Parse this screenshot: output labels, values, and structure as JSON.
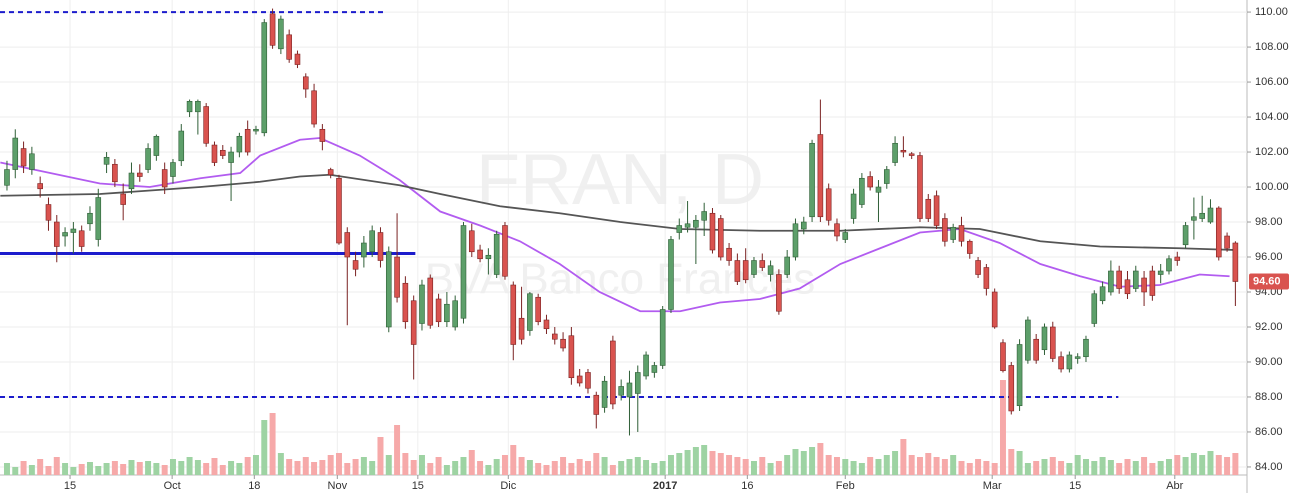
{
  "chart_data": {
    "type": "candlestick",
    "watermark": "FRAN, D",
    "watermark_subtitle": "BVA Banco Frances",
    "ylim": [
      83.54,
      110.69
    ],
    "yticks": [
      {
        "value": 84,
        "label": "84.00"
      },
      {
        "value": 86,
        "label": "86.00"
      },
      {
        "value": 88,
        "label": "88.00"
      },
      {
        "value": 90,
        "label": "90.00"
      },
      {
        "value": 92,
        "label": "92.00"
      },
      {
        "value": 94,
        "label": "94.00"
      },
      {
        "value": 96,
        "label": "96.00"
      },
      {
        "value": 98,
        "label": "98.00"
      },
      {
        "value": 100,
        "label": "100.00"
      },
      {
        "value": 102,
        "label": "102.00"
      },
      {
        "value": 104,
        "label": "104.00"
      },
      {
        "value": 106,
        "label": "106.00"
      },
      {
        "value": 108,
        "label": "108.00"
      },
      {
        "value": 110,
        "label": "110.00"
      }
    ],
    "xlim": [
      -0.84,
      149.4
    ],
    "xticks": [
      {
        "value": 7.6,
        "label": "15"
      },
      {
        "value": 19.9,
        "label": "Oct"
      },
      {
        "value": 29.8,
        "label": "18"
      },
      {
        "value": 39.8,
        "label": "Nov"
      },
      {
        "value": 49.5,
        "label": "15"
      },
      {
        "value": 60.4,
        "label": "Dic"
      },
      {
        "value": 79.3,
        "label": "2017"
      },
      {
        "value": 89.2,
        "label": "16"
      },
      {
        "value": 101,
        "label": "Feb"
      },
      {
        "value": 118.7,
        "label": "Mar"
      },
      {
        "value": 128.7,
        "label": "15"
      },
      {
        "value": 140.7,
        "label": "Abr"
      }
    ],
    "grid": true,
    "up_color": "#5d9f6a",
    "down_color": "#d9534f",
    "candles": [
      [
        100.1,
        101.5,
        99.8,
        101.0
      ],
      [
        101.0,
        103.3,
        100.5,
        102.8
      ],
      [
        102.2,
        102.6,
        100.8,
        101.2
      ],
      [
        101.0,
        102.3,
        100.7,
        101.9
      ],
      [
        100.2,
        100.6,
        99.4,
        99.9
      ],
      [
        99.0,
        99.4,
        97.5,
        98.1
      ],
      [
        98.0,
        98.4,
        95.7,
        96.6
      ],
      [
        97.2,
        97.7,
        96.6,
        97.4
      ],
      [
        97.4,
        98.0,
        96.2,
        97.6
      ],
      [
        97.5,
        97.8,
        96.3,
        96.6
      ],
      [
        97.9,
        98.9,
        97.5,
        98.5
      ],
      [
        97.0,
        99.9,
        96.6,
        99.4
      ],
      [
        101.3,
        102.0,
        100.8,
        101.7
      ],
      [
        101.3,
        101.6,
        100.0,
        100.3
      ],
      [
        99.6,
        100.2,
        98.1,
        99.0
      ],
      [
        99.9,
        101.4,
        99.6,
        100.8
      ],
      [
        100.8,
        101.3,
        100.3,
        100.6
      ],
      [
        101.0,
        102.5,
        100.8,
        102.2
      ],
      [
        101.8,
        103.0,
        101.5,
        102.9
      ],
      [
        101.0,
        101.4,
        99.6,
        100.0
      ],
      [
        100.6,
        101.6,
        100.2,
        101.4
      ],
      [
        101.5,
        103.6,
        101.2,
        103.2
      ],
      [
        104.3,
        105.0,
        104.0,
        104.9
      ],
      [
        104.3,
        105.0,
        103.0,
        104.9
      ],
      [
        104.6,
        104.8,
        102.3,
        102.5
      ],
      [
        102.4,
        102.6,
        101.2,
        101.4
      ],
      [
        102.1,
        102.4,
        101.6,
        101.8
      ],
      [
        101.4,
        102.3,
        99.2,
        102.0
      ],
      [
        102.0,
        103.1,
        101.7,
        102.9
      ],
      [
        103.3,
        103.8,
        101.8,
        102.0
      ],
      [
        103.2,
        103.5,
        103.0,
        103.3
      ],
      [
        103.1,
        109.6,
        102.9,
        109.4
      ],
      [
        109.9,
        110.2,
        107.9,
        108.1
      ],
      [
        107.9,
        109.8,
        107.6,
        109.6
      ],
      [
        108.7,
        109.0,
        107.1,
        107.3
      ],
      [
        107.6,
        107.8,
        106.8,
        107.0
      ],
      [
        106.3,
        106.5,
        105.1,
        105.6
      ],
      [
        105.5,
        105.9,
        103.4,
        103.6
      ],
      [
        103.3,
        103.6,
        102.1,
        102.6
      ],
      [
        101.0,
        101.1,
        100.5,
        100.7
      ],
      [
        100.5,
        100.7,
        96.7,
        96.8
      ],
      [
        97.4,
        97.7,
        92.1,
        96.0
      ],
      [
        95.8,
        96.3,
        94.9,
        95.3
      ],
      [
        96.0,
        97.2,
        95.4,
        96.8
      ],
      [
        96.3,
        97.8,
        96.0,
        97.5
      ],
      [
        97.4,
        97.7,
        95.4,
        95.8
      ],
      [
        92.0,
        96.6,
        91.7,
        96.3
      ],
      [
        96.0,
        98.5,
        93.4,
        93.7
      ],
      [
        94.5,
        94.9,
        91.9,
        92.3
      ],
      [
        93.5,
        93.8,
        89.0,
        91.0
      ],
      [
        92.2,
        94.7,
        91.8,
        94.4
      ],
      [
        94.8,
        95.0,
        91.9,
        92.1
      ],
      [
        93.6,
        93.9,
        92.0,
        92.3
      ],
      [
        92.3,
        94.0,
        92.0,
        93.3
      ],
      [
        92.0,
        93.8,
        91.8,
        93.5
      ],
      [
        92.5,
        98.0,
        92.2,
        97.8
      ],
      [
        97.5,
        97.9,
        96.0,
        96.3
      ],
      [
        96.4,
        96.7,
        95.7,
        95.9
      ],
      [
        95.9,
        96.5,
        95.0,
        96.1
      ],
      [
        95.0,
        97.5,
        94.8,
        97.3
      ],
      [
        97.8,
        98.0,
        94.7,
        94.9
      ],
      [
        94.4,
        94.6,
        90.1,
        91.0
      ],
      [
        92.5,
        94.3,
        91.0,
        91.3
      ],
      [
        91.8,
        94.0,
        91.5,
        93.9
      ],
      [
        93.7,
        93.9,
        92.1,
        92.3
      ],
      [
        92.4,
        92.7,
        91.6,
        91.9
      ],
      [
        91.6,
        92.0,
        91.0,
        91.3
      ],
      [
        91.3,
        91.7,
        90.6,
        90.8
      ],
      [
        91.5,
        92.0,
        88.7,
        89.1
      ],
      [
        89.2,
        89.6,
        88.6,
        88.8
      ],
      [
        89.4,
        89.6,
        88.2,
        88.5
      ],
      [
        88.1,
        88.3,
        86.2,
        87.0
      ],
      [
        87.4,
        89.2,
        87.1,
        88.9
      ],
      [
        91.2,
        91.5,
        87.3,
        87.6
      ],
      [
        88.1,
        89.0,
        87.8,
        88.6
      ],
      [
        88.0,
        89.5,
        85.8,
        88.8
      ],
      [
        88.2,
        89.8,
        86.0,
        89.4
      ],
      [
        89.2,
        90.6,
        89.0,
        90.4
      ],
      [
        89.4,
        90.0,
        89.1,
        89.8
      ],
      [
        89.8,
        93.2,
        89.6,
        93.0
      ],
      [
        93.0,
        97.2,
        92.8,
        97.0
      ],
      [
        97.4,
        98.2,
        97.0,
        97.8
      ],
      [
        97.7,
        99.2,
        97.4,
        97.9
      ],
      [
        97.7,
        98.4,
        95.6,
        98.1
      ],
      [
        98.1,
        99.1,
        97.2,
        98.6
      ],
      [
        98.5,
        98.8,
        96.2,
        96.4
      ],
      [
        98.2,
        98.4,
        95.8,
        96.0
      ],
      [
        96.5,
        96.8,
        95.5,
        95.8
      ],
      [
        95.8,
        96.2,
        94.4,
        94.6
      ],
      [
        95.8,
        96.5,
        94.5,
        94.7
      ],
      [
        95.0,
        96.0,
        94.8,
        95.8
      ],
      [
        95.8,
        96.2,
        95.2,
        95.4
      ],
      [
        95.0,
        95.8,
        94.6,
        95.5
      ],
      [
        95.0,
        95.3,
        92.7,
        92.9
      ],
      [
        95.0,
        96.4,
        94.8,
        96.0
      ],
      [
        96.0,
        98.2,
        95.8,
        97.9
      ],
      [
        97.6,
        98.3,
        97.3,
        98.0
      ],
      [
        98.3,
        102.7,
        98.0,
        102.5
      ],
      [
        103.0,
        105.0,
        98.0,
        98.3
      ],
      [
        99.9,
        100.2,
        97.8,
        98.1
      ],
      [
        97.9,
        98.2,
        96.9,
        97.2
      ],
      [
        97.0,
        97.6,
        96.8,
        97.4
      ],
      [
        98.2,
        99.9,
        97.9,
        99.6
      ],
      [
        99.0,
        100.8,
        98.8,
        100.5
      ],
      [
        100.6,
        100.9,
        99.8,
        100.0
      ],
      [
        99.7,
        100.4,
        98.0,
        100.0
      ],
      [
        100.2,
        101.2,
        99.9,
        101.0
      ],
      [
        101.4,
        102.9,
        101.2,
        102.5
      ],
      [
        102.1,
        102.9,
        101.7,
        102.0
      ],
      [
        101.9,
        102.0,
        101.6,
        101.8
      ],
      [
        101.8,
        102.0,
        98.0,
        98.2
      ],
      [
        99.3,
        99.6,
        98.0,
        98.2
      ],
      [
        99.5,
        99.8,
        97.6,
        97.8
      ],
      [
        98.2,
        98.5,
        96.6,
        96.9
      ],
      [
        97.0,
        97.9,
        96.8,
        97.7
      ],
      [
        97.8,
        98.3,
        96.6,
        96.9
      ],
      [
        96.9,
        97.0,
        95.9,
        96.2
      ],
      [
        95.8,
        96.0,
        94.8,
        95.0
      ],
      [
        95.4,
        95.6,
        93.8,
        94.2
      ],
      [
        94.0,
        94.2,
        91.9,
        92.0
      ],
      [
        91.1,
        91.3,
        89.4,
        89.5
      ],
      [
        89.8,
        90.0,
        87.0,
        87.2
      ],
      [
        87.5,
        91.3,
        87.2,
        91.0
      ],
      [
        90.1,
        92.6,
        89.9,
        92.4
      ],
      [
        91.3,
        91.6,
        89.9,
        90.1
      ],
      [
        90.7,
        92.2,
        90.4,
        92.0
      ],
      [
        92.0,
        92.3,
        90.0,
        90.2
      ],
      [
        90.3,
        90.6,
        89.4,
        89.6
      ],
      [
        89.6,
        90.6,
        89.4,
        90.4
      ],
      [
        90.2,
        90.5,
        89.9,
        90.3
      ],
      [
        90.3,
        91.5,
        90.0,
        91.3
      ],
      [
        92.2,
        94.1,
        92.0,
        93.9
      ],
      [
        93.5,
        94.6,
        93.3,
        94.3
      ],
      [
        94.0,
        95.8,
        93.8,
        95.2
      ],
      [
        95.2,
        95.5,
        93.9,
        94.2
      ],
      [
        94.7,
        95.2,
        93.6,
        93.9
      ],
      [
        94.2,
        95.5,
        94.0,
        95.2
      ],
      [
        94.8,
        95.2,
        93.2,
        94.0
      ],
      [
        95.2,
        95.5,
        93.5,
        93.8
      ],
      [
        95.0,
        95.6,
        94.5,
        95.2
      ],
      [
        95.2,
        96.1,
        95.0,
        95.9
      ],
      [
        96.0,
        96.3,
        95.5,
        95.8
      ],
      [
        96.7,
        98.0,
        96.5,
        97.8
      ],
      [
        98.1,
        99.4,
        97.0,
        98.3
      ],
      [
        98.2,
        99.5,
        98.0,
        98.5
      ],
      [
        98.0,
        99.3,
        97.9,
        98.8
      ],
      [
        98.8,
        98.9,
        95.8,
        96.0
      ],
      [
        97.2,
        97.4,
        96.3,
        96.5
      ],
      [
        96.8,
        96.9,
        93.2,
        94.6
      ]
    ],
    "volume_lim": [
      0,
      100
    ],
    "volume": [
      12,
      8,
      14,
      10,
      16,
      9,
      18,
      12,
      8,
      11,
      13,
      9,
      12,
      14,
      11,
      15,
      13,
      14,
      12,
      10,
      16,
      14,
      18,
      15,
      12,
      17,
      10,
      14,
      12,
      18,
      20,
      55,
      62,
      22,
      16,
      14,
      18,
      13,
      15,
      20,
      22,
      12,
      16,
      18,
      14,
      38,
      20,
      50,
      22,
      15,
      20,
      12,
      18,
      10,
      14,
      18,
      25,
      14,
      10,
      16,
      20,
      30,
      18,
      15,
      12,
      10,
      14,
      18,
      12,
      16,
      14,
      22,
      18,
      10,
      14,
      16,
      18,
      15,
      12,
      14,
      20,
      22,
      25,
      28,
      30,
      24,
      22,
      20,
      18,
      16,
      14,
      18,
      12,
      14,
      20,
      26,
      24,
      28,
      32,
      20,
      18,
      16,
      14,
      12,
      18,
      16,
      20,
      24,
      36,
      20,
      18,
      22,
      18,
      16,
      20,
      14,
      12,
      16,
      14,
      12,
      95,
      26,
      24,
      12,
      14,
      16,
      18,
      14,
      12,
      20,
      16,
      14,
      18,
      15,
      12,
      16,
      14,
      18,
      12,
      14,
      16,
      20,
      18,
      22,
      20,
      24,
      20,
      18,
      22
    ],
    "moving_averages": [
      {
        "color": "#b25cf0",
        "x": [
          -0.8,
          11.2,
          17.2,
          23.3,
          28.1,
          30.5,
          35.3,
          37.7,
          42.5,
          47.3,
          52.2,
          57,
          61.8,
          66.6,
          71.4,
          76.3,
          81.1,
          85.9,
          90.7,
          95.5,
          100.4,
          105.2,
          110,
          114.8,
          119.6,
          124.5,
          129.3,
          134.1,
          138.9,
          143.7,
          147.3
        ],
        "values": [
          101.4,
          100.2,
          100.0,
          100.5,
          100.8,
          101.8,
          102.7,
          102.8,
          101.8,
          100.4,
          98.6,
          97.8,
          96.9,
          95.6,
          94.0,
          92.9,
          92.9,
          93.4,
          93.6,
          94.2,
          95.6,
          96.5,
          97.4,
          97.6,
          96.8,
          95.6,
          94.9,
          94.3,
          94.4,
          95.0,
          94.9
        ]
      },
      {
        "color": "#555555",
        "x": [
          -0.8,
          11.2,
          23.3,
          30.5,
          35.3,
          38.9,
          47.3,
          52.2,
          59.4,
          66.6,
          73.9,
          81.1,
          90.7,
          100.4,
          110,
          117.2,
          124.5,
          131.7,
          141.3,
          148
        ],
        "values": [
          99.5,
          99.6,
          100.0,
          100.3,
          100.6,
          100.7,
          100.1,
          99.6,
          98.9,
          98.5,
          98.0,
          97.6,
          97.5,
          97.5,
          97.7,
          97.6,
          96.9,
          96.6,
          96.5,
          96.4
        ]
      }
    ],
    "levels": [
      {
        "value": 110,
        "x": [
          -0.84,
          45.5
        ],
        "style": "dashed",
        "color": "#1c1ccc"
      },
      {
        "value": 96.2,
        "x": [
          -0.84,
          49.2
        ],
        "style": "solid",
        "color": "#1c1ccc"
      },
      {
        "value": 88,
        "x": [
          -0.84,
          133.9
        ],
        "style": "dashed",
        "color": "#1c1ccc"
      }
    ],
    "last_price": {
      "value": 94.6,
      "label": "94.60",
      "color": "#d9534f"
    }
  }
}
